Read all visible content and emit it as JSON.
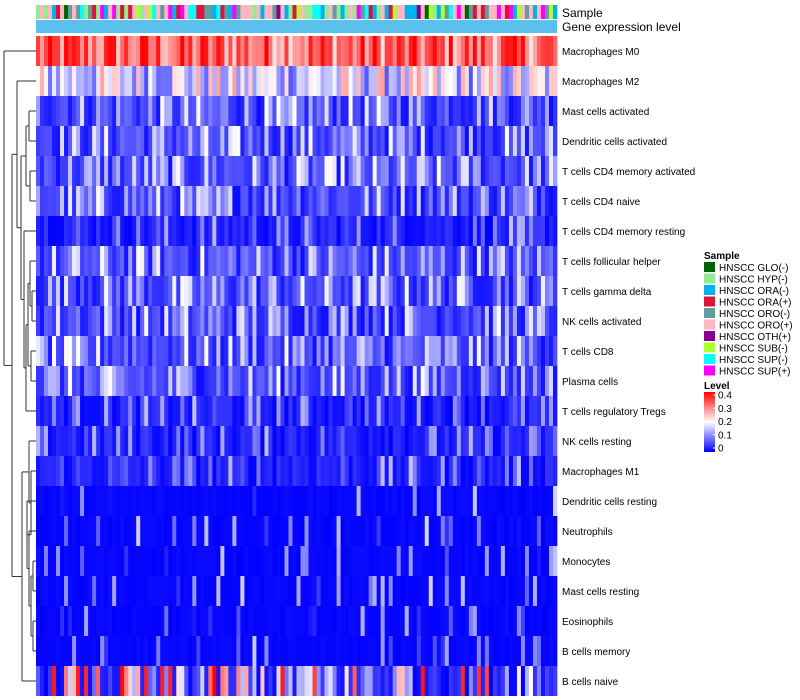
{
  "chart_data": {
    "type": "heatmap",
    "title": "",
    "top_annotations": {
      "sample_label": "Sample",
      "level_label": "Gene expression level"
    },
    "rows": [
      {
        "name": "Macrophages M0",
        "profile": "high"
      },
      {
        "name": "Macrophages M2",
        "profile": "mid"
      },
      {
        "name": "Mast cells activated",
        "profile": "lowmid"
      },
      {
        "name": "Dendritic cells activated",
        "profile": "lowmid"
      },
      {
        "name": "T cells CD4 memory activated",
        "profile": "lowmid"
      },
      {
        "name": "T cells CD4 naive",
        "profile": "lowmid"
      },
      {
        "name": "T cells CD4 memory resting",
        "profile": "low"
      },
      {
        "name": "T cells follicular helper",
        "profile": "lowmid"
      },
      {
        "name": "T cells gamma delta",
        "profile": "lowmid"
      },
      {
        "name": "NK cells activated",
        "profile": "lowmid"
      },
      {
        "name": "T cells CD8",
        "profile": "lowmid"
      },
      {
        "name": "Plasma cells",
        "profile": "lowmid"
      },
      {
        "name": "T cells regulatory  Tregs",
        "profile": "low"
      },
      {
        "name": "NK cells resting",
        "profile": "low"
      },
      {
        "name": "Macrophages M1",
        "profile": "low"
      },
      {
        "name": "Dendritic cells resting",
        "profile": "verylow"
      },
      {
        "name": "Neutrophils",
        "profile": "verylow"
      },
      {
        "name": "Monocytes",
        "profile": "verylow"
      },
      {
        "name": "Mast cells resting",
        "profile": "verylow"
      },
      {
        "name": "Eosinophils",
        "profile": "verylow"
      },
      {
        "name": "B cells memory",
        "profile": "verylow"
      },
      {
        "name": "B cells naive",
        "profile": "mixed"
      }
    ],
    "n_columns": 130,
    "value_range": [
      0,
      0.4
    ],
    "legend": {
      "sample": {
        "title": "Sample",
        "items": [
          {
            "label": "HNSCC GLO(-)",
            "color": "#006400"
          },
          {
            "label": "HNSCC HYP(-)",
            "color": "#90EE90"
          },
          {
            "label": "HNSCC ORA(-)",
            "color": "#00B2EE"
          },
          {
            "label": "HNSCC ORA(+)",
            "color": "#DC143C"
          },
          {
            "label": "HNSCC ORO(-)",
            "color": "#5F9EA0"
          },
          {
            "label": "HNSCC ORO(+)",
            "color": "#FFB6C1"
          },
          {
            "label": "HNSCC OTH(+)",
            "color": "#8B008B"
          },
          {
            "label": "HNSCC SUB(-)",
            "color": "#ADFF2F"
          },
          {
            "label": "HNSCC SUP(-)",
            "color": "#00FFFF"
          },
          {
            "label": "HNSCC SUP(+)",
            "color": "#FF00FF"
          }
        ]
      },
      "level": {
        "title": "Level",
        "ticks": [
          "0.4",
          "0.3",
          "0.2",
          "0.1",
          "0"
        ],
        "colors": {
          "low": "#0000FF",
          "mid": "#FFFFFF",
          "high": "#FF0000"
        },
        "level_bar_color": "#5BC0EB"
      }
    }
  }
}
